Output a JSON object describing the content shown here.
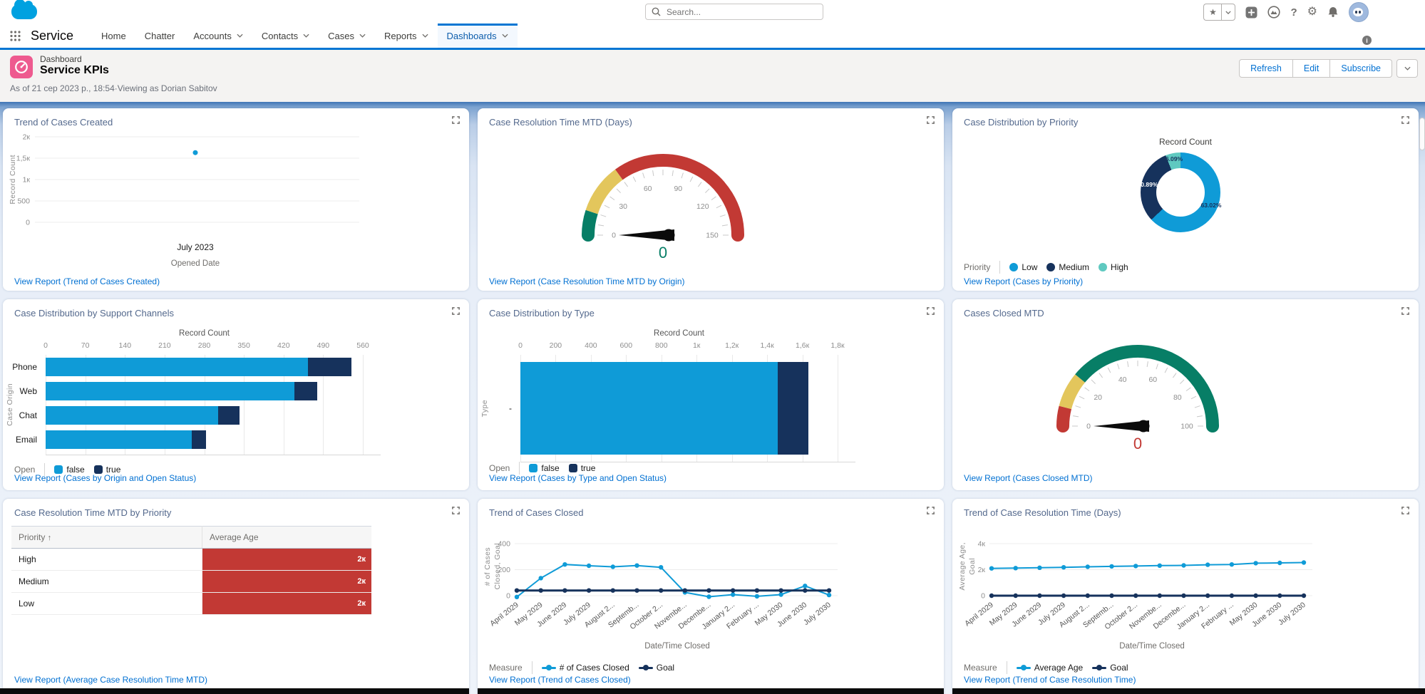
{
  "colors": {
    "accent_blue": "#0176d3",
    "link": "#0070d2",
    "chart_blue": "#0f9bd7",
    "navy": "#16325c",
    "teal": "#5fc9c0",
    "green": "#077e66",
    "yellow": "#e3c65c",
    "red": "#c23934",
    "icon_pink": "#ee5a8f"
  },
  "header": {
    "search_placeholder": "Search...",
    "app_name": "Service",
    "icons": [
      "favorites-star",
      "favorites-caret",
      "global-actions-plus",
      "trailhead",
      "help",
      "setup-gear",
      "notifications-bell",
      "avatar"
    ],
    "tabs": [
      {
        "label": "Home",
        "caret": false,
        "active": false
      },
      {
        "label": "Chatter",
        "caret": false,
        "active": false
      },
      {
        "label": "Accounts",
        "caret": true,
        "active": false
      },
      {
        "label": "Contacts",
        "caret": true,
        "active": false
      },
      {
        "label": "Cases",
        "caret": true,
        "active": false
      },
      {
        "label": "Reports",
        "caret": true,
        "active": false
      },
      {
        "label": "Dashboards",
        "caret": true,
        "active": true
      }
    ]
  },
  "page_header": {
    "record_type": "Dashboard",
    "title": "Service KPIs",
    "as_of": "As of 21 сер 2023 р., 18:54·Viewing as Dorian Sabitov",
    "buttons": [
      "Refresh",
      "Edit",
      "Subscribe"
    ]
  },
  "panels": [
    {
      "id": "trend-of-cases-created",
      "title": "Trend of Cases Created",
      "link": "View Report (Trend of Cases Created)",
      "type": "scatter",
      "chart": {
        "type": "scatter",
        "ylabel": "Record Count",
        "xlabel": "Opened Date",
        "ymax": 2000,
        "yticks": [
          {
            "v": 0,
            "label": "0"
          },
          {
            "v": 500,
            "label": "500"
          },
          {
            "v": 1000,
            "label": "1к"
          },
          {
            "v": 1500,
            "label": "1,5к"
          },
          {
            "v": 2000,
            "label": "2к"
          }
        ],
        "points": [
          {
            "x": "July 2023",
            "y": 1630
          }
        ],
        "color": "#0f9bd7"
      }
    },
    {
      "id": "case-resolution-time-mtd",
      "title": "Case Resolution Time MTD (Days)",
      "link": "View Report (Case Resolution Time MTD by Origin)",
      "type": "gauge",
      "chart": {
        "type": "gauge",
        "min": 0,
        "max": 150,
        "ticks": [
          0,
          30,
          60,
          90,
          120,
          150
        ],
        "segments": [
          {
            "from": 0,
            "to": 15,
            "color": "#077e66"
          },
          {
            "from": 15,
            "to": 45,
            "color": "#e3c65c"
          },
          {
            "from": 45,
            "to": 150,
            "color": "#c23934"
          }
        ],
        "value": 0,
        "value_label": "0",
        "value_color": "#077e66"
      }
    },
    {
      "id": "case-distribution-by-priority",
      "title": "Case Distribution by Priority",
      "link": "View Report (Cases by Priority)",
      "type": "donut",
      "chart": {
        "type": "pie",
        "center_title": "Record Count",
        "slices": [
          {
            "label": "Low",
            "pct": 63.02,
            "display": "63.02%",
            "color": "#0f9bd7",
            "text": "#16325c"
          },
          {
            "label": "Medium",
            "pct": 30.89,
            "display": "30.89%",
            "color": "#16325c",
            "text": "#ffffff"
          },
          {
            "label": "High",
            "pct": 6.09,
            "display": "6.09%",
            "color": "#5fc9c0",
            "text": "#16325c"
          }
        ],
        "legend": {
          "label": "Priority",
          "items": [
            {
              "text": "Low",
              "color": "#0f9bd7",
              "swatch": "circle"
            },
            {
              "text": "Medium",
              "color": "#16325c",
              "swatch": "circle"
            },
            {
              "text": "High",
              "color": "#5fc9c0",
              "swatch": "circle"
            }
          ]
        }
      }
    },
    {
      "id": "case-distribution-by-support-channels",
      "title": "Case Distribution by Support Channels",
      "link": "View Report (Cases by Origin and Open Status)",
      "type": "hbar",
      "chart": {
        "type": "bar",
        "xtitle": "Record Count",
        "ylabel": "Case Origin",
        "xmax": 560,
        "xticks": [
          {
            "v": 0,
            "label": "0"
          },
          {
            "v": 70,
            "label": "70"
          },
          {
            "v": 140,
            "label": "140"
          },
          {
            "v": 210,
            "label": "210"
          },
          {
            "v": 280,
            "label": "280"
          },
          {
            "v": 350,
            "label": "350"
          },
          {
            "v": 420,
            "label": "420"
          },
          {
            "v": 490,
            "label": "490"
          },
          {
            "v": 560,
            "label": "560"
          }
        ],
        "categories": [
          "Phone",
          "Web",
          "Chat",
          "Email"
        ],
        "series": [
          {
            "name": "false",
            "color": "#0f9bd7",
            "values": [
              463,
              439,
              305,
              258
            ]
          },
          {
            "name": "true",
            "color": "#16325c",
            "values": [
              77,
              40,
              37,
              25
            ]
          }
        ],
        "legend": {
          "label": "Open",
          "items": [
            {
              "text": "false",
              "color": "#0f9bd7",
              "swatch": "square"
            },
            {
              "text": "true",
              "color": "#16325c",
              "swatch": "square"
            }
          ]
        }
      }
    },
    {
      "id": "case-distribution-by-type",
      "title": "Case Distribution by Type",
      "link": "View Report (Cases by Type and Open Status)",
      "type": "hbar",
      "chart": {
        "type": "bar",
        "xtitle": "Record Count",
        "ylabel": "Type",
        "xmax": 1800,
        "xticks": [
          {
            "v": 0,
            "label": "0"
          },
          {
            "v": 200,
            "label": "200"
          },
          {
            "v": 400,
            "label": "400"
          },
          {
            "v": 600,
            "label": "600"
          },
          {
            "v": 800,
            "label": "800"
          },
          {
            "v": 1000,
            "label": "1к"
          },
          {
            "v": 1200,
            "label": "1,2к"
          },
          {
            "v": 1400,
            "label": "1,4к"
          },
          {
            "v": 1600,
            "label": "1,6к"
          },
          {
            "v": 1800,
            "label": "1,8к"
          }
        ],
        "categories": [
          "-"
        ],
        "series": [
          {
            "name": "false",
            "color": "#0f9bd7",
            "values": [
              1459
            ]
          },
          {
            "name": "true",
            "color": "#16325c",
            "values": [
              177
            ]
          }
        ],
        "legend": {
          "label": "Open",
          "items": [
            {
              "text": "false",
              "color": "#0f9bd7",
              "swatch": "square"
            },
            {
              "text": "true",
              "color": "#16325c",
              "swatch": "square"
            }
          ]
        }
      }
    },
    {
      "id": "cases-closed-mtd",
      "title": "Cases Closed MTD",
      "link": "View Report (Cases Closed MTD)",
      "type": "gauge",
      "chart": {
        "type": "gauge",
        "min": 0,
        "max": 100,
        "ticks": [
          0,
          20,
          40,
          60,
          80,
          100
        ],
        "segments": [
          {
            "from": 0,
            "to": 8,
            "color": "#c23934"
          },
          {
            "from": 8,
            "to": 22,
            "color": "#e3c65c"
          },
          {
            "from": 22,
            "to": 100,
            "color": "#077e66"
          }
        ],
        "value": 0,
        "value_label": "0",
        "value_color": "#c23934"
      }
    },
    {
      "id": "case-resolution-time-mtd-by-priority",
      "title": "Case Resolution Time MTD by Priority",
      "link": "View Report (Average Case Resolution Time MTD)",
      "type": "table",
      "chart": {
        "type": "table",
        "bar_color": "#c23934",
        "columns": [
          {
            "label": "Priority",
            "sorted": "asc"
          },
          {
            "label": "Average Age",
            "sorted": null
          }
        ],
        "rows": [
          {
            "priority": "High",
            "bar_label": "2к"
          },
          {
            "priority": "Medium",
            "bar_label": "2к"
          },
          {
            "priority": "Low",
            "bar_label": "2к"
          }
        ]
      }
    },
    {
      "id": "trend-of-cases-closed",
      "title": "Trend of Cases Closed",
      "link": "View Report (Trend of Cases Closed)",
      "type": "line",
      "chart": {
        "type": "line",
        "ylabel_lines": [
          "# of Cases",
          "Closed, Goal"
        ],
        "xlabel": "Date/Time Closed",
        "ymax": 400,
        "yticks": [
          {
            "v": 0,
            "label": "0"
          },
          {
            "v": 200,
            "label": "200"
          },
          {
            "v": 400,
            "label": "400"
          }
        ],
        "categories": [
          "April 2029",
          "May 2029",
          "June 2029",
          "July 2029",
          "August 2...",
          "Septemb...",
          "October 2...",
          "Novembe...",
          "Decembe...",
          "January 2...",
          "February ...",
          "May 2030",
          "June 2030",
          "July 2030"
        ],
        "series": [
          {
            "name": "# of Cases Closed",
            "color": "#0f9bd7",
            "values": [
              -10,
              135,
              240,
              230,
              222,
              232,
              218,
              25,
              -8,
              8,
              -5,
              8,
              75,
              5
            ]
          },
          {
            "name": "Goal",
            "color": "#16325c",
            "values": [
              40,
              40,
              40,
              40,
              40,
              40,
              40,
              40,
              40,
              40,
              40,
              40,
              40,
              40
            ]
          }
        ],
        "legend": {
          "label": "Measure",
          "items": [
            {
              "text": "# of Cases Closed",
              "color": "#0f9bd7",
              "swatch": "line"
            },
            {
              "text": "Goal",
              "color": "#16325c",
              "swatch": "line"
            }
          ]
        }
      }
    },
    {
      "id": "trend-of-case-resolution-time",
      "title": "Trend of Case Resolution Time (Days)",
      "link": "View Report (Trend of Case Resolution Time)",
      "type": "line",
      "chart": {
        "type": "line",
        "ylabel_lines": [
          "Average Age,",
          "Goal"
        ],
        "xlabel": "Date/Time Closed",
        "ymax": 4000,
        "yticks": [
          {
            "v": 0,
            "label": "0"
          },
          {
            "v": 2000,
            "label": "2к"
          },
          {
            "v": 4000,
            "label": "4к"
          }
        ],
        "categories": [
          "April 2029",
          "May 2029",
          "June 2029",
          "July 2029",
          "August 2...",
          "Septemb...",
          "October 2...",
          "Novembe...",
          "Decembe...",
          "January 2...",
          "February ...",
          "May 2030",
          "June 2030",
          "July 2030"
        ],
        "series": [
          {
            "name": "Average Age",
            "color": "#0f9bd7",
            "values": [
              2100,
              2120,
              2150,
              2180,
              2220,
              2250,
              2280,
              2310,
              2330,
              2380,
              2400,
              2500,
              2520,
              2550
            ]
          },
          {
            "name": "Goal",
            "color": "#16325c",
            "values": [
              0,
              0,
              0,
              0,
              0,
              0,
              0,
              0,
              0,
              0,
              0,
              0,
              0,
              0
            ]
          }
        ],
        "legend": {
          "label": "Measure",
          "items": [
            {
              "text": "Average Age",
              "color": "#0f9bd7",
              "swatch": "line"
            },
            {
              "text": "Goal",
              "color": "#16325c",
              "swatch": "line"
            }
          ]
        }
      }
    }
  ]
}
